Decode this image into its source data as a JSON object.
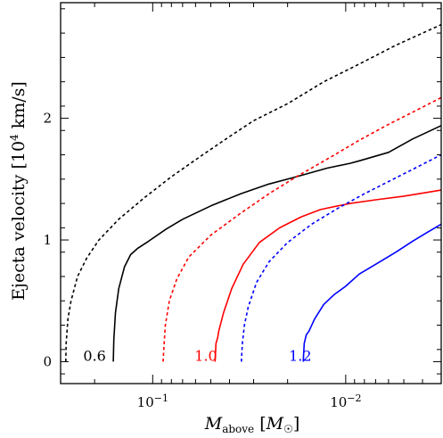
{
  "chart_data": {
    "type": "line",
    "xlabel": "M_above [M_sun]",
    "ylabel": "Ejecta velocity [10^4 km/s]",
    "x_scale": "log",
    "x_reversed": true,
    "xlim": [
      0.3,
      0.0032
    ],
    "ylim": [
      -0.18,
      2.95
    ],
    "x_ticks": [
      {
        "value": 0.1,
        "label": "10−1"
      },
      {
        "value": 0.01,
        "label": "10−2"
      }
    ],
    "y_ticks": [
      0,
      1,
      2
    ],
    "curve_labels": [
      {
        "text": "0.6",
        "color": "#000000",
        "x": 0.2,
        "y": 0.0
      },
      {
        "text": "1.0",
        "color": "#ff0000",
        "x": 0.053,
        "y": 0.0
      },
      {
        "text": "1.2",
        "color": "#0000ff",
        "x": 0.0172,
        "y": 0.0
      }
    ],
    "series": [
      {
        "model": "0.6",
        "color": "#000000",
        "linestyle": "dashed",
        "points": [
          [
            0.282,
            0.0
          ],
          [
            0.281,
            0.15
          ],
          [
            0.275,
            0.35
          ],
          [
            0.265,
            0.5
          ],
          [
            0.245,
            0.7
          ],
          [
            0.22,
            0.85
          ],
          [
            0.19,
            1.0
          ],
          [
            0.15,
            1.17
          ],
          [
            0.11,
            1.35
          ],
          [
            0.08,
            1.52
          ],
          [
            0.055,
            1.7
          ],
          [
            0.04,
            1.85
          ],
          [
            0.03,
            1.98
          ],
          [
            0.02,
            2.12
          ],
          [
            0.013,
            2.3
          ],
          [
            0.0084,
            2.45
          ],
          [
            0.0055,
            2.6
          ],
          [
            0.0032,
            2.77
          ]
        ]
      },
      {
        "model": "0.6",
        "color": "#000000",
        "linestyle": "solid",
        "points": [
          [
            0.16,
            0.0
          ],
          [
            0.159,
            0.18
          ],
          [
            0.156,
            0.4
          ],
          [
            0.15,
            0.6
          ],
          [
            0.14,
            0.78
          ],
          [
            0.13,
            0.88
          ],
          [
            0.12,
            0.93
          ],
          [
            0.105,
            0.99
          ],
          [
            0.085,
            1.09
          ],
          [
            0.07,
            1.17
          ],
          [
            0.05,
            1.28
          ],
          [
            0.035,
            1.38
          ],
          [
            0.025,
            1.46
          ],
          [
            0.018,
            1.52
          ],
          [
            0.0125,
            1.59
          ],
          [
            0.0095,
            1.63
          ],
          [
            0.0085,
            1.65
          ],
          [
            0.006,
            1.72
          ],
          [
            0.0045,
            1.83
          ],
          [
            0.0032,
            1.94
          ]
        ]
      },
      {
        "model": "1.0",
        "color": "#ff0000",
        "linestyle": "dashed",
        "points": [
          [
            0.0883,
            0.0
          ],
          [
            0.0875,
            0.12
          ],
          [
            0.086,
            0.3
          ],
          [
            0.082,
            0.5
          ],
          [
            0.075,
            0.68
          ],
          [
            0.065,
            0.86
          ],
          [
            0.05,
            1.04
          ],
          [
            0.035,
            1.22
          ],
          [
            0.025,
            1.38
          ],
          [
            0.018,
            1.52
          ],
          [
            0.012,
            1.68
          ],
          [
            0.0085,
            1.82
          ],
          [
            0.006,
            1.95
          ],
          [
            0.0045,
            2.05
          ],
          [
            0.0032,
            2.17
          ]
        ]
      },
      {
        "model": "1.0",
        "color": "#ff0000",
        "linestyle": "solid",
        "points": [
          [
            0.0475,
            0.0
          ],
          [
            0.047,
            0.15
          ],
          [
            0.046,
            0.2
          ],
          [
            0.0455,
            0.25
          ],
          [
            0.043,
            0.4
          ],
          [
            0.039,
            0.6
          ],
          [
            0.034,
            0.8
          ],
          [
            0.028,
            0.98
          ],
          [
            0.022,
            1.1
          ],
          [
            0.017,
            1.19
          ],
          [
            0.0135,
            1.25
          ],
          [
            0.011,
            1.28
          ],
          [
            0.0095,
            1.3
          ],
          [
            0.007,
            1.33
          ],
          [
            0.005,
            1.36
          ],
          [
            0.0032,
            1.41
          ]
        ]
      },
      {
        "model": "1.2",
        "color": "#0000ff",
        "linestyle": "dashed",
        "points": [
          [
            0.0347,
            0.0
          ],
          [
            0.0343,
            0.15
          ],
          [
            0.0335,
            0.3
          ],
          [
            0.032,
            0.45
          ],
          [
            0.029,
            0.65
          ],
          [
            0.025,
            0.82
          ],
          [
            0.02,
            0.98
          ],
          [
            0.015,
            1.13
          ],
          [
            0.011,
            1.26
          ],
          [
            0.008,
            1.38
          ],
          [
            0.006,
            1.48
          ],
          [
            0.0045,
            1.58
          ],
          [
            0.0032,
            1.7
          ]
        ]
      },
      {
        "model": "1.2",
        "color": "#0000ff",
        "linestyle": "solid",
        "points": [
          [
            0.0166,
            0.0
          ],
          [
            0.0164,
            0.15
          ],
          [
            0.016,
            0.22
          ],
          [
            0.0155,
            0.25
          ],
          [
            0.0145,
            0.35
          ],
          [
            0.013,
            0.47
          ],
          [
            0.0115,
            0.55
          ],
          [
            0.01,
            0.62
          ],
          [
            0.0085,
            0.72
          ],
          [
            0.007,
            0.8
          ],
          [
            0.0055,
            0.9
          ],
          [
            0.0045,
            0.99
          ],
          [
            0.0038,
            1.06
          ],
          [
            0.0032,
            1.13
          ]
        ]
      }
    ]
  }
}
